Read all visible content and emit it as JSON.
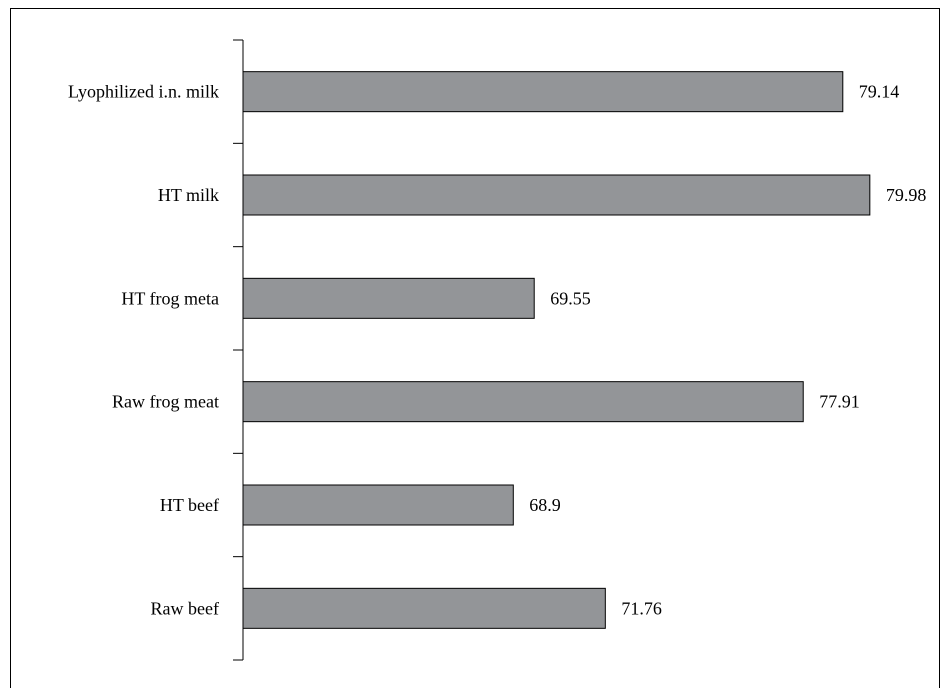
{
  "chart_data": {
    "type": "bar",
    "orientation": "horizontal",
    "categories": [
      "Lyophilized i.n. milk",
      "HT milk",
      "HT frog meta",
      "Raw frog meat",
      "HT beef",
      "Raw beef"
    ],
    "values": [
      79.14,
      79.98,
      69.55,
      77.91,
      68.9,
      71.76
    ],
    "value_labels": [
      "79.14",
      "79.98",
      "69.55",
      "77.91",
      "68.9",
      "71.76"
    ],
    "title": "",
    "xlabel": "",
    "ylabel": "",
    "xlim": [
      60.5,
      80.7
    ],
    "grid": false,
    "legend": "none",
    "colors": {
      "bar_fill": "#939598",
      "bar_stroke": "#000000",
      "axis": "#000000",
      "text": "#000000"
    }
  }
}
